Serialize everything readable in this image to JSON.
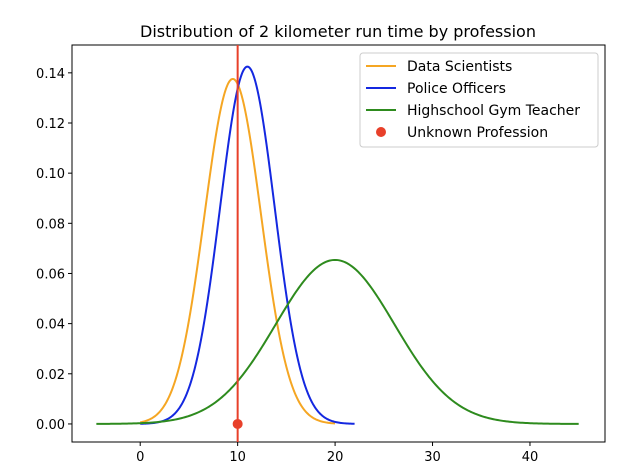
{
  "chart_data": {
    "type": "line",
    "title": "Distribution of 2 kilometer run time by profession",
    "xlabel": "",
    "ylabel": "",
    "xlim": [
      -7,
      47.7
    ],
    "ylim": [
      -0.0072,
      0.1511
    ],
    "xticks": [
      0,
      10,
      20,
      30,
      40
    ],
    "xtick_labels": [
      "0",
      "10",
      "20",
      "30",
      "40"
    ],
    "yticks": [
      0.0,
      0.02,
      0.04,
      0.06,
      0.08,
      0.1,
      0.12,
      0.14
    ],
    "ytick_labels": [
      "0.00",
      "0.02",
      "0.04",
      "0.06",
      "0.08",
      "0.10",
      "0.12",
      "0.14"
    ],
    "grid": false,
    "legend_position": "upper right",
    "series": [
      {
        "name": "Data Scientists",
        "kind": "normal_pdf",
        "color": "#f5a623",
        "mean": 9.5,
        "std": 2.9,
        "x_range": [
          0,
          20
        ],
        "peak_value": 0.137
      },
      {
        "name": "Police Officers",
        "kind": "normal_pdf",
        "color": "#1428e0",
        "mean": 11,
        "std": 2.8,
        "x_range": [
          0,
          22
        ],
        "peak_value": 0.143
      },
      {
        "name": "Highschool Gym Teacher",
        "kind": "normal_pdf",
        "color": "#2e8b1e",
        "mean": 20,
        "std": 6.1,
        "x_range": [
          -4.5,
          45
        ],
        "peak_value": 0.065
      },
      {
        "name": "Unknown Profession",
        "kind": "point",
        "color": "#e8402a",
        "x": 10,
        "y": 0.0
      }
    ],
    "annotations": [
      {
        "type": "vertical_line",
        "x": 10,
        "color": "#e8402a"
      }
    ]
  },
  "legend": {
    "items": [
      {
        "label": "Data Scientists",
        "marker": "line",
        "color": "#f5a623"
      },
      {
        "label": "Police Officers",
        "marker": "line",
        "color": "#1428e0"
      },
      {
        "label": "Highschool Gym Teacher",
        "marker": "line",
        "color": "#2e8b1e"
      },
      {
        "label": "Unknown Profession",
        "marker": "dot",
        "color": "#e8402a"
      }
    ]
  }
}
